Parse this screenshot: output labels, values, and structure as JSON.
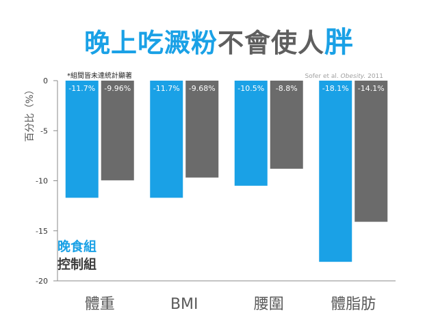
{
  "title": {
    "part1": "晚上吃澱粉",
    "part2": "不會使人",
    "part3": "胖"
  },
  "colors": {
    "experimental": "#1aa1e6",
    "control": "#6b6b6b",
    "axis": "#888888",
    "title_blue": "#1aa1e6"
  },
  "chart_data": {
    "type": "bar",
    "ylabel": "百分比（%）",
    "xlabel": "",
    "ylim": [
      -20,
      0
    ],
    "yticks": [
      0,
      -5,
      -10,
      -15,
      -20
    ],
    "categories": [
      "體重",
      "BMI",
      "腰圍",
      "體脂肪"
    ],
    "series": [
      {
        "name": "晚食組",
        "values": [
          -11.7,
          -11.7,
          -10.5,
          -18.1
        ],
        "labels": [
          "-11.7%",
          "-11.7%",
          "-10.5%",
          "-18.1%"
        ]
      },
      {
        "name": "控制組",
        "values": [
          -9.96,
          -9.68,
          -8.8,
          -14.1
        ],
        "labels": [
          "-9.96%",
          "-9.68%",
          "-8.8%",
          "-14.1%"
        ]
      }
    ],
    "note": "*組間皆未達統計顯著",
    "source": {
      "authors": "Sofer et al.",
      "journal": "Obesity.",
      "year": "2011"
    },
    "legend_position": "bottom-left"
  }
}
